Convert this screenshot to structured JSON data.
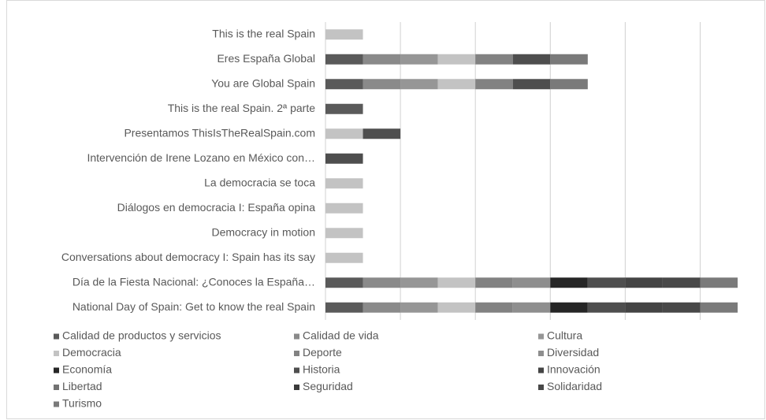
{
  "chart_data": {
    "type": "stacked-barh",
    "categories": [
      "This is the real Spain",
      "Eres España Global",
      "You are Global Spain",
      "This is the real Spain. 2ª parte",
      "Presentamos ThisIsTheRealSpain.com",
      "Intervención de Irene Lozano en México con…",
      "La democracia se toca",
      "Diálogos en democracia I: España opina",
      "Democracy in motion",
      "Conversations about democracy I: Spain has its say",
      "Día de la Fiesta Nacional: ¿Conoces la España…",
      "National Day of Spain: Get to know the real Spain"
    ],
    "series": [
      {
        "name": "Calidad de productos y servicios",
        "color": "#5a5a5a",
        "values": [
          null,
          1,
          1,
          1,
          null,
          null,
          null,
          null,
          null,
          null,
          1,
          1
        ]
      },
      {
        "name": "Calidad de vida",
        "color": "#8a8a8a",
        "values": [
          null,
          1,
          1,
          null,
          null,
          null,
          null,
          null,
          null,
          null,
          1,
          1
        ]
      },
      {
        "name": "Cultura",
        "color": "#969696",
        "values": [
          null,
          1,
          1,
          null,
          null,
          null,
          null,
          null,
          null,
          null,
          1,
          1
        ]
      },
      {
        "name": "Democracia",
        "color": "#c3c3c3",
        "values": [
          1,
          1,
          1,
          null,
          1,
          null,
          1,
          1,
          1,
          1,
          1,
          1
        ]
      },
      {
        "name": "Deporte",
        "color": "#828282",
        "values": [
          null,
          1,
          1,
          null,
          null,
          null,
          null,
          null,
          null,
          null,
          1,
          1
        ]
      },
      {
        "name": "Diversidad",
        "color": "#8e8e8e",
        "values": [
          null,
          null,
          null,
          null,
          null,
          null,
          null,
          null,
          null,
          null,
          1,
          1
        ]
      },
      {
        "name": "Economía",
        "color": "#262626",
        "values": [
          null,
          null,
          null,
          null,
          null,
          null,
          null,
          null,
          null,
          null,
          1,
          1
        ]
      },
      {
        "name": "Historia",
        "color": "#4e4e4e",
        "values": [
          null,
          1,
          1,
          null,
          1,
          1,
          null,
          null,
          null,
          null,
          1,
          1
        ]
      },
      {
        "name": "Innovación",
        "color": "#444444",
        "values": [
          null,
          null,
          null,
          null,
          null,
          null,
          null,
          null,
          null,
          null,
          1,
          1
        ]
      },
      {
        "name": "Libertad",
        "color": "#727272",
        "values": [
          null,
          null,
          null,
          null,
          null,
          null,
          null,
          null,
          null,
          null,
          null,
          null
        ]
      },
      {
        "name": "Seguridad",
        "color": "#3a3a3a",
        "values": [
          null,
          null,
          null,
          null,
          null,
          null,
          null,
          null,
          null,
          null,
          null,
          null
        ]
      },
      {
        "name": "Solidaridad",
        "color": "#484848",
        "values": [
          null,
          null,
          null,
          null,
          null,
          null,
          null,
          null,
          null,
          null,
          1,
          1
        ]
      },
      {
        "name": "Turismo",
        "color": "#7a7a7a",
        "values": [
          null,
          1,
          1,
          null,
          null,
          null,
          null,
          null,
          null,
          null,
          1,
          1
        ]
      }
    ],
    "xlim": [
      0,
      11
    ],
    "xticks": [
      0,
      2,
      4,
      6,
      8,
      10
    ],
    "grid": true
  }
}
